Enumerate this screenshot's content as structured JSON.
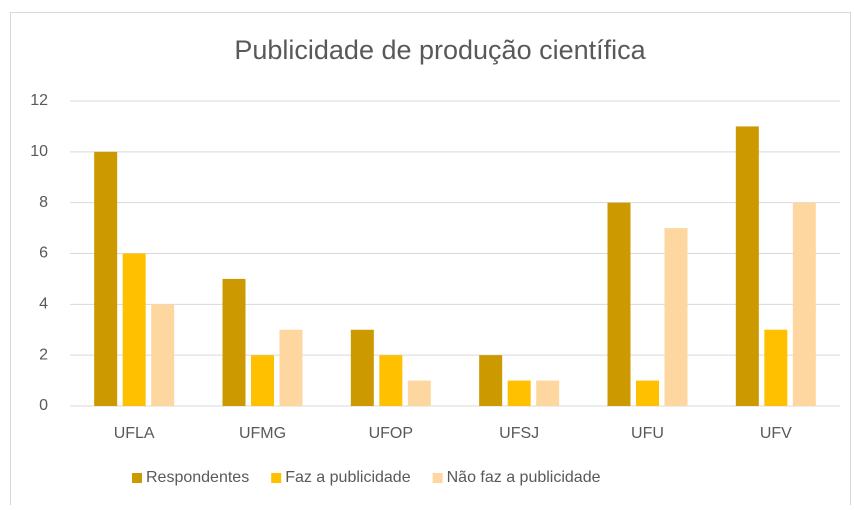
{
  "chart_data": {
    "type": "bar",
    "title": "Publicidade de produção científica",
    "categories": [
      "UFLA",
      "UFMG",
      "UFOP",
      "UFSJ",
      "UFU",
      "UFV"
    ],
    "series": [
      {
        "name": "Respondentes",
        "color": "#cc9900",
        "values": [
          10,
          5,
          3,
          2,
          8,
          11
        ]
      },
      {
        "name": "Faz a publicidade",
        "color": "#ffc000",
        "values": [
          6,
          2,
          2,
          1,
          1,
          3
        ]
      },
      {
        "name": "Não faz a publicidade",
        "color": "#fdd79f",
        "values": [
          4,
          3,
          1,
          1,
          7,
          8
        ]
      }
    ],
    "ylim": [
      0,
      12
    ],
    "yticks": [
      0,
      2,
      4,
      6,
      8,
      10,
      12
    ],
    "grid": true,
    "legend": "bottom"
  }
}
